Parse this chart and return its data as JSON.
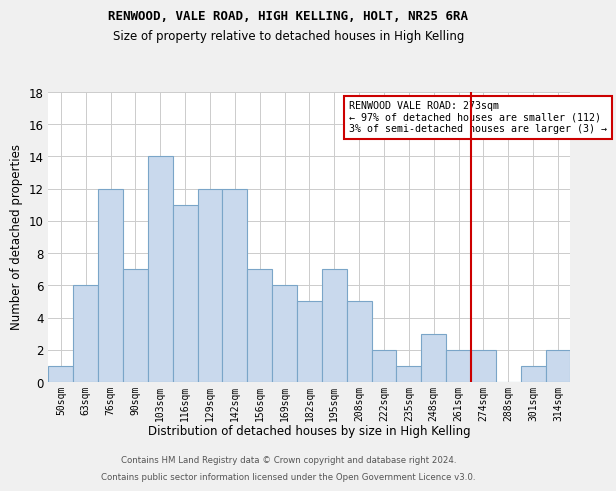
{
  "title1": "RENWOOD, VALE ROAD, HIGH KELLING, HOLT, NR25 6RA",
  "title2": "Size of property relative to detached houses in High Kelling",
  "xlabel": "Distribution of detached houses by size in High Kelling",
  "ylabel": "Number of detached properties",
  "bar_labels": [
    "50sqm",
    "63sqm",
    "76sqm",
    "90sqm",
    "103sqm",
    "116sqm",
    "129sqm",
    "142sqm",
    "156sqm",
    "169sqm",
    "182sqm",
    "195sqm",
    "208sqm",
    "222sqm",
    "235sqm",
    "248sqm",
    "261sqm",
    "274sqm",
    "288sqm",
    "301sqm",
    "314sqm"
  ],
  "bar_values": [
    1,
    6,
    12,
    7,
    14,
    11,
    12,
    12,
    7,
    6,
    5,
    7,
    5,
    2,
    1,
    3,
    2,
    2,
    0,
    1,
    2
  ],
  "bar_color": "#c9d9ed",
  "bar_edgecolor": "#7aa5c8",
  "marker_bin_index": 16.5,
  "marker_color": "#cc0000",
  "annotation_title": "RENWOOD VALE ROAD: 273sqm",
  "annotation_line1": "← 97% of detached houses are smaller (112)",
  "annotation_line2": "3% of semi-detached houses are larger (3) →",
  "ylim": [
    0,
    18
  ],
  "yticks": [
    0,
    2,
    4,
    6,
    8,
    10,
    12,
    14,
    16,
    18
  ],
  "footer1": "Contains HM Land Registry data © Crown copyright and database right 2024.",
  "footer2": "Contains public sector information licensed under the Open Government Licence v3.0.",
  "bg_color": "#f0f0f0",
  "plot_bg_color": "#ffffff"
}
